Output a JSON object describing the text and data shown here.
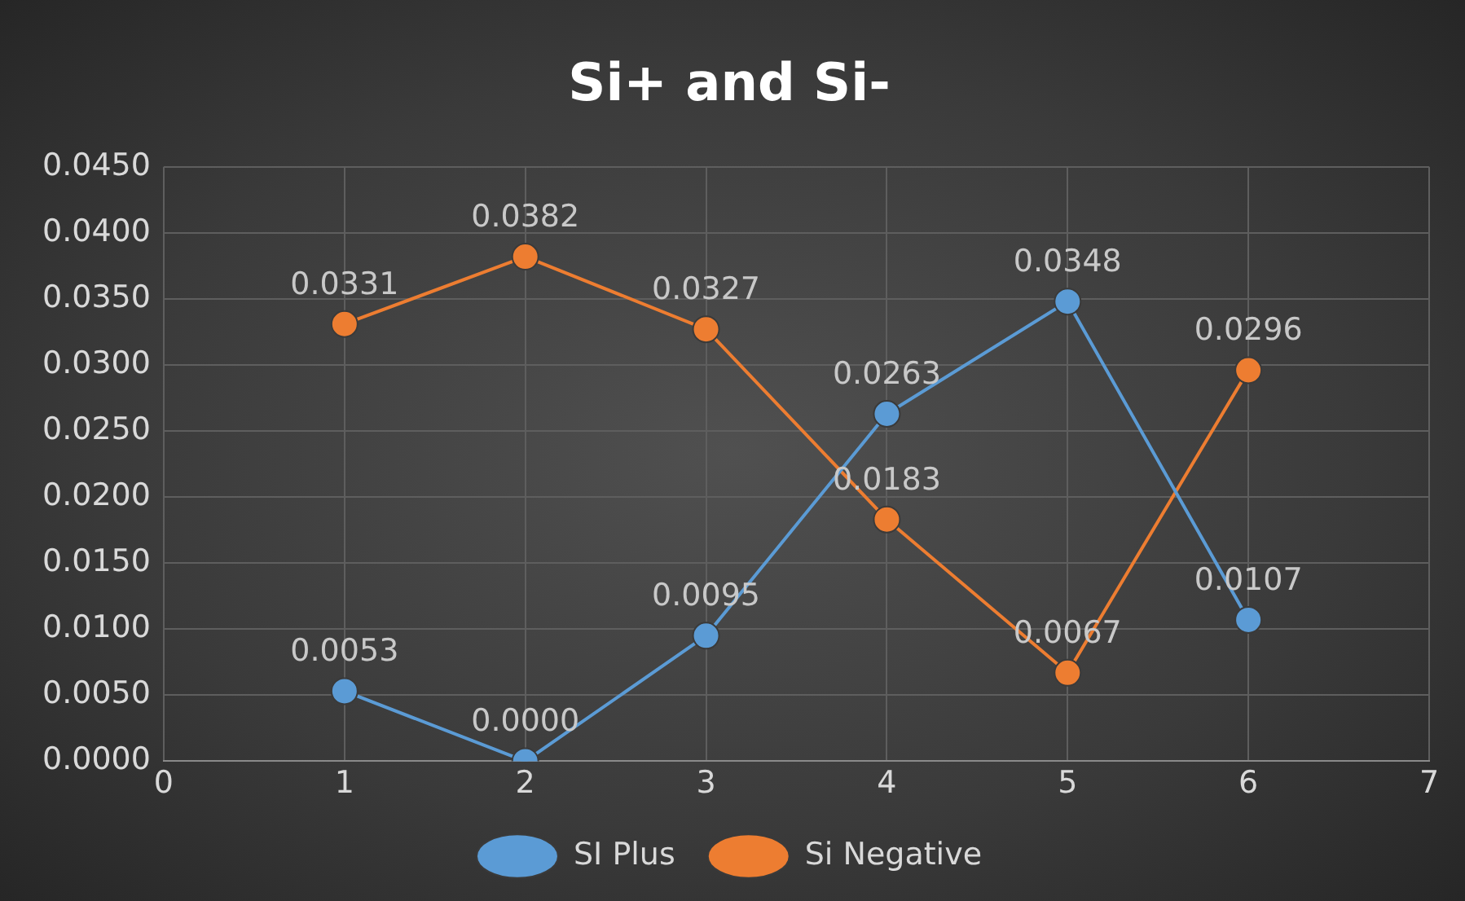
{
  "chart_data": {
    "type": "line",
    "title": "Si+ and Si-",
    "x": [
      1,
      2,
      3,
      4,
      5,
      6
    ],
    "series": [
      {
        "name": "SI Plus",
        "color": "#5b9bd5",
        "values": [
          0.0053,
          0,
          0.0095,
          0.0263,
          0.0348,
          0.0107
        ],
        "value_labels": [
          "0.0053",
          "0.0000",
          "0.0095",
          "0.0263",
          "0.0348",
          "0.0107"
        ]
      },
      {
        "name": "Si Negative",
        "color": "#ed7d31",
        "values": [
          0.0331,
          0.0382,
          0.0327,
          0.0183,
          0.0067,
          0.0296
        ],
        "value_labels": [
          "0.0331",
          "0.0382",
          "0.0327",
          "0.0183",
          "0.0067",
          "0.0296"
        ]
      }
    ],
    "xlim": [
      0,
      7
    ],
    "xticks": [
      0,
      1,
      2,
      3,
      4,
      5,
      6,
      7
    ],
    "ylim": [
      0,
      0.045
    ],
    "yticks": [
      {
        "value": 0,
        "label": "0.0000"
      },
      {
        "value": 0.005,
        "label": "0.0050"
      },
      {
        "value": 0.01,
        "label": "0.0100"
      },
      {
        "value": 0.015,
        "label": "0.0150"
      },
      {
        "value": 0.02,
        "label": "0.0200"
      },
      {
        "value": 0.025,
        "label": "0.0250"
      },
      {
        "value": 0.03,
        "label": "0.0300"
      },
      {
        "value": 0.035,
        "label": "0.0350"
      },
      {
        "value": 0.04,
        "label": "0.0400"
      },
      {
        "value": 0.045,
        "label": "0.0450"
      }
    ],
    "grid": true,
    "legend": "bottom",
    "marker": "circle",
    "line_style": "solid"
  }
}
